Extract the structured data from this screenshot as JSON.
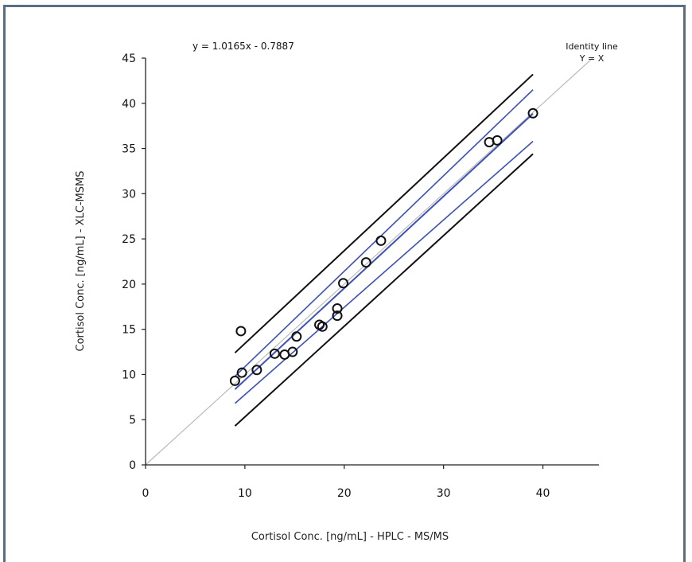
{
  "chart_data": {
    "type": "scatter",
    "equation": "y = 1.0165x - 0.7887",
    "annotation": [
      "Identity line",
      "Y = X"
    ],
    "xlabel": "Cortisol Conc. [ng/mL] - HPLC - MS/MS",
    "ylabel": "Cortisol Conc. [ng/mL] - XLC-MSMS",
    "xlim": [
      0,
      45
    ],
    "ylim": [
      0,
      45
    ],
    "xticks": [
      0,
      10,
      20,
      30,
      40
    ],
    "yticks": [
      0,
      5,
      10,
      15,
      20,
      25,
      30,
      35,
      40,
      45
    ],
    "grid": false,
    "colors": {
      "points": "#111111",
      "regression": "#3a4fc8",
      "prediction": "#111111",
      "identity": "#bbbbbb"
    },
    "points": [
      {
        "x": 9.0,
        "y": 9.3
      },
      {
        "x": 9.7,
        "y": 10.2
      },
      {
        "x": 9.6,
        "y": 14.8
      },
      {
        "x": 11.2,
        "y": 10.5
      },
      {
        "x": 13.0,
        "y": 12.3
      },
      {
        "x": 14.0,
        "y": 12.2
      },
      {
        "x": 14.8,
        "y": 12.5
      },
      {
        "x": 15.2,
        "y": 14.2
      },
      {
        "x": 17.5,
        "y": 15.5
      },
      {
        "x": 17.8,
        "y": 15.3
      },
      {
        "x": 19.3,
        "y": 16.5
      },
      {
        "x": 19.3,
        "y": 17.3
      },
      {
        "x": 19.9,
        "y": 20.1
      },
      {
        "x": 22.2,
        "y": 22.4
      },
      {
        "x": 23.7,
        "y": 24.8
      },
      {
        "x": 34.6,
        "y": 35.7
      },
      {
        "x": 35.4,
        "y": 35.9
      },
      {
        "x": 39.0,
        "y": 38.9
      }
    ],
    "series": [
      {
        "kind": "identity",
        "x": [
          0,
          45
        ],
        "y": [
          0,
          45
        ]
      },
      {
        "kind": "regression",
        "x": [
          9,
          39
        ],
        "y": [
          8.36,
          38.86
        ]
      },
      {
        "kind": "confidence-upper",
        "x": [
          9,
          39
        ],
        "y": [
          9.8,
          41.5
        ]
      },
      {
        "kind": "confidence-lower",
        "x": [
          9,
          39
        ],
        "y": [
          6.8,
          35.8
        ]
      },
      {
        "kind": "prediction-upper",
        "x": [
          9,
          39
        ],
        "y": [
          12.4,
          43.2
        ]
      },
      {
        "kind": "prediction-lower",
        "x": [
          9,
          39
        ],
        "y": [
          4.3,
          34.4
        ]
      }
    ]
  }
}
